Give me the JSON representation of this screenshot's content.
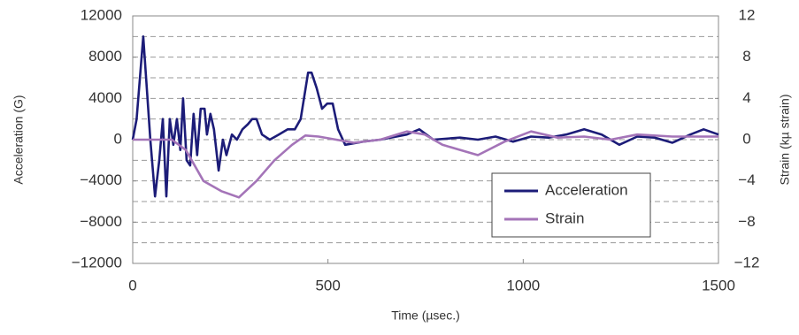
{
  "chart_data": {
    "type": "line",
    "x_label": "Time (µsec.)",
    "y_label": "Acceleration (G)",
    "y2_label": "Strain (kµ strain)",
    "xlim": [
      0,
      1500
    ],
    "xticks": [
      0,
      500,
      1000,
      1500
    ],
    "ylim": [
      -12000,
      12000
    ],
    "yticks": [
      {
        "value": -12000,
        "label": "−12000"
      },
      {
        "value": -8000,
        "label": "−8000"
      },
      {
        "value": -4000,
        "label": "−4000"
      },
      0,
      4000,
      8000,
      12000
    ],
    "ygrid": [
      -10000,
      -8000,
      -6000,
      -4000,
      -2000,
      0,
      2000,
      4000,
      6000,
      8000,
      10000
    ],
    "y2lim": [
      -12,
      12
    ],
    "y2ticks": [
      {
        "value": -12,
        "label": "−12"
      },
      {
        "value": -8,
        "label": "−8"
      },
      {
        "value": -4,
        "label": "−4"
      },
      0,
      4,
      8,
      12
    ],
    "legend": "lower-right",
    "series": [
      {
        "name": "Acceleration",
        "color": "#1c1c78",
        "x": [
          0,
          10,
          27,
          45,
          57,
          68,
          77,
          86,
          95,
          104,
          113,
          122,
          129,
          138,
          147,
          156,
          165,
          174,
          184,
          190,
          199,
          208,
          220,
          231,
          240,
          254,
          267,
          281,
          295,
          306,
          317,
          331,
          351,
          374,
          397,
          415,
          430,
          449,
          458,
          471,
          485,
          498,
          512,
          526,
          544,
          589,
          634,
          702,
          734,
          770,
          838,
          884,
          929,
          974,
          1020,
          1065,
          1110,
          1156,
          1201,
          1246,
          1292,
          1337,
          1382,
          1428,
          1462,
          1500
        ],
        "values": [
          0,
          2000,
          10000,
          0,
          -5500,
          -2000,
          2000,
          -5500,
          2000,
          -500,
          2000,
          -1000,
          4000,
          -2000,
          -2500,
          2500,
          -1500,
          3000,
          3000,
          500,
          2500,
          1000,
          -3000,
          0,
          -1500,
          500,
          0,
          1000,
          1500,
          2000,
          2000,
          500,
          0,
          500,
          1000,
          1000,
          2000,
          6500,
          6500,
          5000,
          3000,
          3500,
          3500,
          1000,
          -500,
          -200,
          0,
          500,
          1000,
          0,
          200,
          0,
          300,
          -200,
          300,
          200,
          500,
          1000,
          500,
          -500,
          300,
          200,
          -300,
          500,
          1000,
          500
        ]
      },
      {
        "name": "Strain",
        "color": "#a474b8",
        "axis": "y2",
        "x": [
          0,
          100,
          136,
          181,
          227,
          272,
          317,
          363,
          408,
          442,
          476,
          521,
          566,
          634,
          702,
          748,
          793,
          884,
          952,
          1020,
          1088,
          1156,
          1224,
          1292,
          1382,
          1500
        ],
        "values": [
          0,
          0,
          -1,
          -4,
          -5,
          -5.6,
          -4,
          -2,
          -0.5,
          0.4,
          0.3,
          0,
          -0.3,
          0,
          0.8,
          0.5,
          -0.5,
          -1.5,
          -0.2,
          0.8,
          0.2,
          0.3,
          0,
          0.5,
          0.3,
          0.3
        ]
      }
    ]
  }
}
